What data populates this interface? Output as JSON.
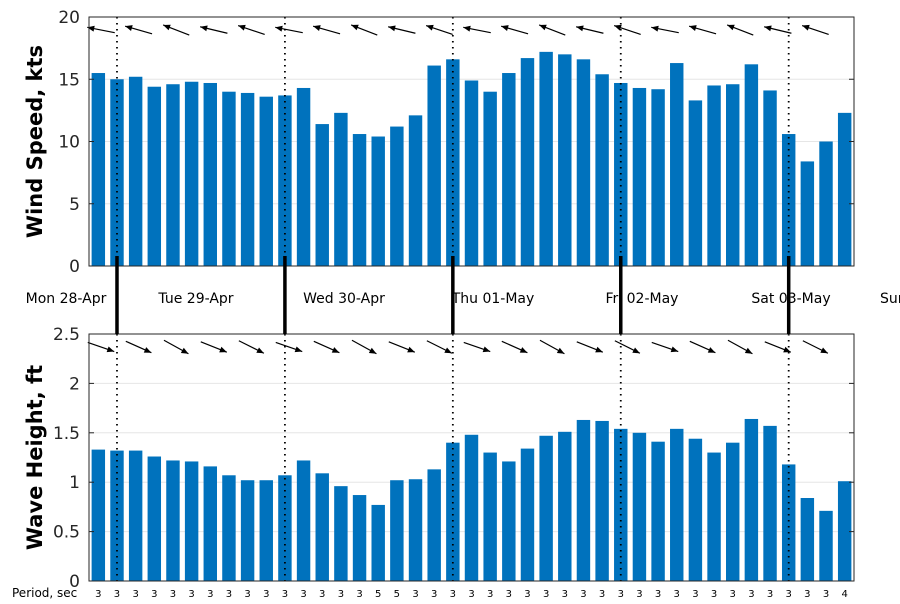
{
  "chart_data": [
    {
      "type": "bar",
      "ylabel": "Wind Speed, kts",
      "ylim": [
        0,
        20
      ],
      "yticks": [
        0,
        5,
        10,
        15,
        20
      ],
      "grid": true,
      "color": "#0072BD",
      "values": [
        15.5,
        15.0,
        15.2,
        14.4,
        14.6,
        14.8,
        14.7,
        14.0,
        13.9,
        13.6,
        13.7,
        14.3,
        11.4,
        12.3,
        10.6,
        10.4,
        11.2,
        12.1,
        16.1,
        16.6,
        14.9,
        14.0,
        15.5,
        16.7,
        17.2,
        17.0,
        16.6,
        15.4,
        14.7,
        14.3,
        14.2,
        16.3,
        13.3,
        14.5,
        14.6,
        16.2,
        14.1,
        10.6,
        8.4,
        10.0,
        12.3
      ],
      "direction_arrows": "wind direction arrows above bars"
    },
    {
      "type": "bar",
      "ylabel": "Wave Height, ft",
      "ylim": [
        0,
        2.5
      ],
      "yticks": [
        "0",
        "0.5",
        "1",
        "1.5",
        "2",
        "2.5"
      ],
      "grid": true,
      "color": "#0072BD",
      "values": [
        1.33,
        1.32,
        1.32,
        1.26,
        1.22,
        1.21,
        1.16,
        1.07,
        1.02,
        1.02,
        1.07,
        1.22,
        1.09,
        0.96,
        0.87,
        0.77,
        1.02,
        1.03,
        1.13,
        1.4,
        1.48,
        1.3,
        1.21,
        1.34,
        1.47,
        1.51,
        1.63,
        1.62,
        1.54,
        1.5,
        1.41,
        1.54,
        1.44,
        1.3,
        1.4,
        1.64,
        1.57,
        1.18,
        0.84,
        0.71,
        1.01
      ],
      "direction_arrows": "wave direction arrows above bars"
    }
  ],
  "days": [
    "Mon 28-Apr",
    "Tue 29-Apr",
    "Wed 30-Apr",
    "Thu 01-May",
    "Fri 02-May",
    "Sat 03-May",
    "Sun"
  ],
  "period": {
    "label": "Period, sec",
    "values": [
      "3",
      "3",
      "3",
      "3",
      "3",
      "3",
      "3",
      "3",
      "3",
      "3",
      "3",
      "3",
      "3",
      "3",
      "3",
      "5",
      "5",
      "3",
      "3",
      "3",
      "3",
      "3",
      "3",
      "3",
      "3",
      "3",
      "3",
      "3",
      "3",
      "3",
      "3",
      "3",
      "3",
      "3",
      "3",
      "3",
      "3",
      "3",
      "3",
      "3",
      "4"
    ]
  }
}
